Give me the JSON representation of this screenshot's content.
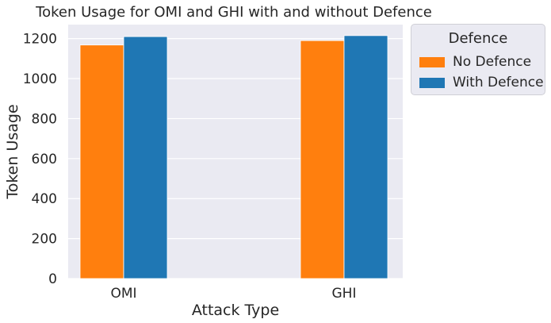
{
  "chart_data": {
    "type": "bar",
    "title": "Token Usage for OMI and GHI with and without Defence",
    "xlabel": "Attack Type",
    "ylabel": "Token Usage",
    "categories": [
      "OMI",
      "GHI"
    ],
    "series": [
      {
        "name": "No Defence",
        "values": [
          1168,
          1190
        ],
        "color": "#ff7f0e"
      },
      {
        "name": "With Defence",
        "values": [
          1210,
          1215
        ],
        "color": "#1f77b4"
      }
    ],
    "ylim": [
      0,
      1270
    ],
    "yticks": [
      0,
      200,
      400,
      600,
      800,
      1000,
      1200
    ],
    "grid": true,
    "legend": {
      "title": "Defence",
      "placement": "outside-right"
    },
    "colors": {
      "background": "#eaeaf2",
      "grid": "#ffffff"
    }
  }
}
